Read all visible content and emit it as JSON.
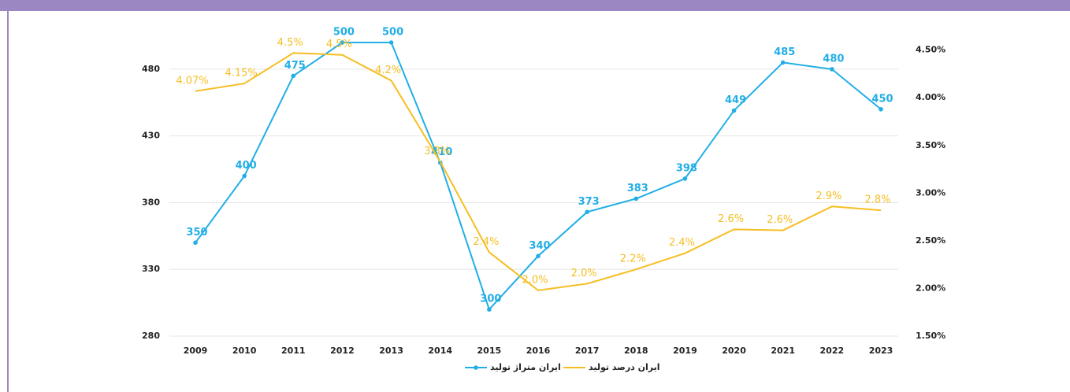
{
  "chart_data": {
    "type": "line",
    "categories": [
      "2009",
      "2010",
      "2011",
      "2012",
      "2013",
      "2014",
      "2015",
      "2016",
      "2017",
      "2018",
      "2019",
      "2020",
      "2021",
      "2022",
      "2023"
    ],
    "series": [
      {
        "name": "ایران متراژ تولید",
        "color": "#22aee6",
        "values": [
          350,
          400,
          475,
          500,
          500,
          410,
          300,
          340,
          373,
          383,
          398,
          449,
          485,
          480,
          450
        ]
      },
      {
        "name": "ایران درصد تولید",
        "color": "#f6be22",
        "axis": "y2",
        "values": [
          4.07,
          4.15,
          4.47,
          4.45,
          4.18,
          3.33,
          2.38,
          1.98,
          2.05,
          2.2,
          2.37,
          2.62,
          2.61,
          2.86,
          2.82
        ],
        "value_labels": [
          "4.07%",
          "4.15%",
          "4.5%",
          "4.5%",
          "4.2%",
          "3.3%",
          "2.4%",
          "2.0%",
          "2.0%",
          "2.2%",
          "2.4%",
          "2.6%",
          "2.6%",
          "2.9%",
          "2.8%"
        ]
      }
    ],
    "ylim": [
      280,
      500
    ],
    "yticks": [
      280,
      330,
      380,
      430,
      480
    ],
    "y2lim": [
      1.5,
      4.58
    ],
    "y2ticks": [
      {
        "value": 1.5,
        "label": "1.50%"
      },
      {
        "value": 2.0,
        "label": "2.00%"
      },
      {
        "value": 2.5,
        "label": "2.50%"
      },
      {
        "value": 3.0,
        "label": "3.00%"
      },
      {
        "value": 3.5,
        "label": "3.50%"
      },
      {
        "value": 4.0,
        "label": "4.00%"
      },
      {
        "value": 4.5,
        "label": "4.50%"
      }
    ],
    "grid": true,
    "legend": "bottom"
  }
}
